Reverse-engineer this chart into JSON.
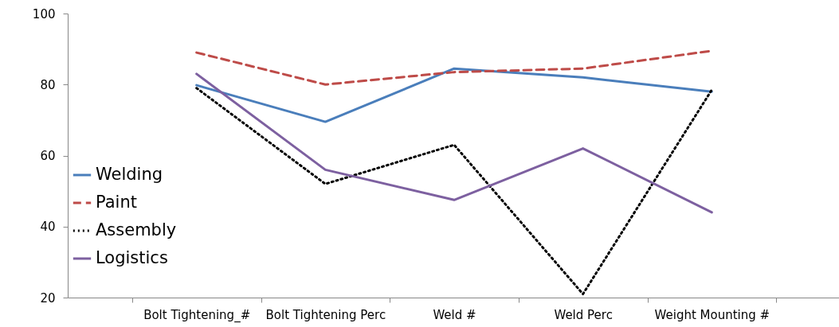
{
  "chart_data": {
    "type": "line",
    "categories": [
      "Bolt Tightening_#",
      "Bolt Tightening Perc",
      "Weld #",
      "Weld Perc",
      "Weight Mounting #"
    ],
    "ylim": [
      20,
      100
    ],
    "yticks": [
      20,
      40,
      60,
      80,
      100
    ],
    "grid": false,
    "legend": "bottom left",
    "marker": "none",
    "series": [
      {
        "name": "Welding",
        "color": "#4a7ebb",
        "line_style": "solid",
        "values": [
          79.8,
          69.5,
          84.5,
          82,
          78
        ]
      },
      {
        "name": "Paint",
        "color": "#be4b48",
        "line_style": "dashed",
        "values": [
          89,
          80,
          83.5,
          84.5,
          89.5
        ]
      },
      {
        "name": "Assembly",
        "color": "#000000",
        "line_style": "dotted",
        "values": [
          79,
          52,
          63,
          21,
          78.5
        ]
      },
      {
        "name": "Logistics",
        "color": "#7d60a0",
        "line_style": "solid",
        "values": [
          83,
          56,
          47.5,
          62,
          44
        ]
      }
    ]
  }
}
